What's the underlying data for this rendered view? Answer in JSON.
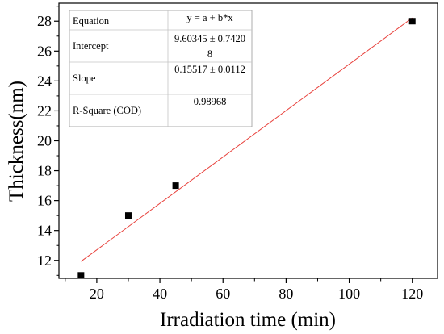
{
  "chart_data": {
    "type": "scatter",
    "xlabel": "Irradiation time (min)",
    "ylabel": "Thickness(nm)",
    "xlim": [
      8,
      128
    ],
    "ylim": [
      10.8,
      29.2
    ],
    "xticks": [
      20,
      40,
      60,
      80,
      100,
      120
    ],
    "yticks": [
      12,
      14,
      16,
      18,
      20,
      22,
      24,
      26,
      28
    ],
    "x": [
      15,
      30,
      45,
      120
    ],
    "y": [
      11,
      15,
      17,
      28
    ],
    "fit_line": {
      "intercept": 9.60345,
      "slope": 0.15517,
      "x_range": [
        15,
        120
      ],
      "color": "#e8413c"
    },
    "marker_color": "#000000",
    "fit_table": {
      "rows": [
        {
          "label": "Equation",
          "value": "y = a + b*x"
        },
        {
          "label": "Intercept",
          "value": "9.60345 ± 0.7420",
          "value_wrap": "8"
        },
        {
          "label": "Slope",
          "value": "0.15517 ± 0.0112"
        },
        {
          "label": "R-Square (COD)",
          "value": "0.98968"
        }
      ]
    },
    "grid": false,
    "legend": "none"
  }
}
